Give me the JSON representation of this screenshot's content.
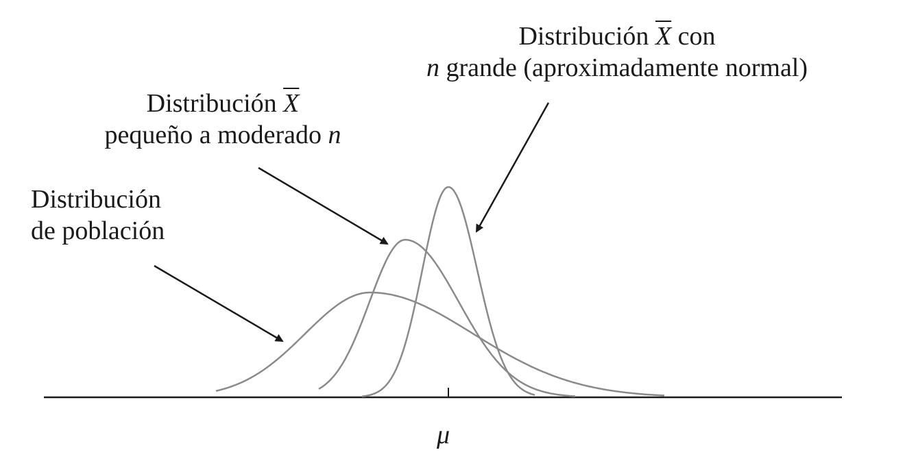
{
  "labels": {
    "population": {
      "line1": "Distribución",
      "line2": "de población"
    },
    "small_n": {
      "line1_prefix": "Distribución",
      "xbar": "X",
      "line2_prefix": "pequeño a moderado",
      "n": "n"
    },
    "large_n": {
      "line1_prefix": "Distribución",
      "xbar": "X",
      "line1_suffix": "con",
      "n": "n",
      "line2_suffix": "grande (aproximadamente normal)"
    },
    "mu": "μ"
  },
  "colors": {
    "curve": "#8a8a8a",
    "axis": "#1a1a1a",
    "arrow": "#1a1a1a"
  }
}
